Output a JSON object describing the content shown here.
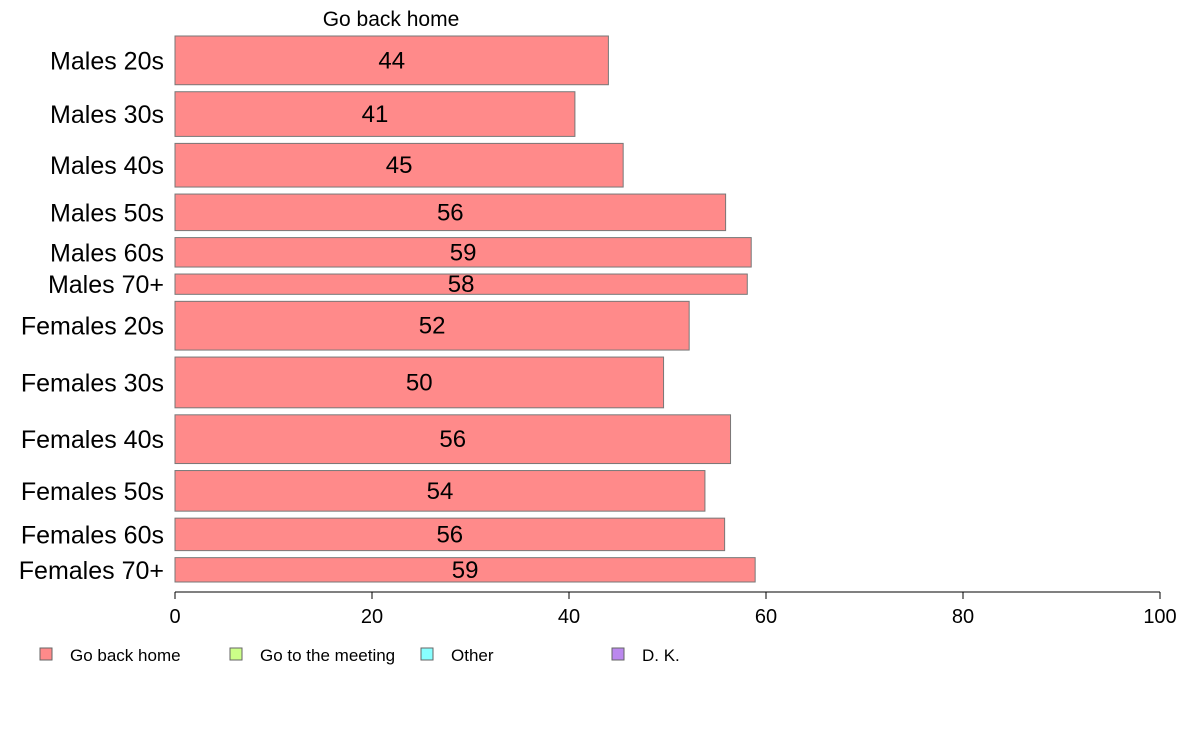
{
  "chart_data": {
    "type": "bar",
    "orientation": "horizontal",
    "title": "Go back home",
    "categories": [
      "Males 20s",
      "Males 30s",
      "Males 40s",
      "Males 50s",
      "Males 60s",
      "Males 70+",
      "Females 20s",
      "Females 30s",
      "Females 40s",
      "Females 50s",
      "Females 60s",
      "Females 70+"
    ],
    "relative_widths": [
      48,
      44,
      43,
      36,
      29,
      20,
      48,
      50,
      48,
      40,
      32,
      24
    ],
    "series": [
      {
        "name": "Go back home",
        "color": "#ff8a8a",
        "values": [
          44,
          41,
          45,
          56,
          59,
          58,
          52,
          50,
          56,
          54,
          56,
          59
        ],
        "exact": [
          44.0,
          40.6,
          45.5,
          55.9,
          58.5,
          58.1,
          52.2,
          49.6,
          56.4,
          53.8,
          55.8,
          58.9
        ]
      }
    ],
    "xlim": [
      0,
      100
    ],
    "xticks": [
      0,
      20,
      40,
      60,
      80,
      100
    ],
    "legend": {
      "placement": "bottom",
      "entries": [
        {
          "label": "Go back home",
          "color": "#ff8a8a"
        },
        {
          "label": "Go to the meeting",
          "color": "#ccff88"
        },
        {
          "label": "Other",
          "color": "#88ffff"
        },
        {
          "label": "D. K.",
          "color": "#bb88ee"
        }
      ]
    },
    "grid": false
  }
}
